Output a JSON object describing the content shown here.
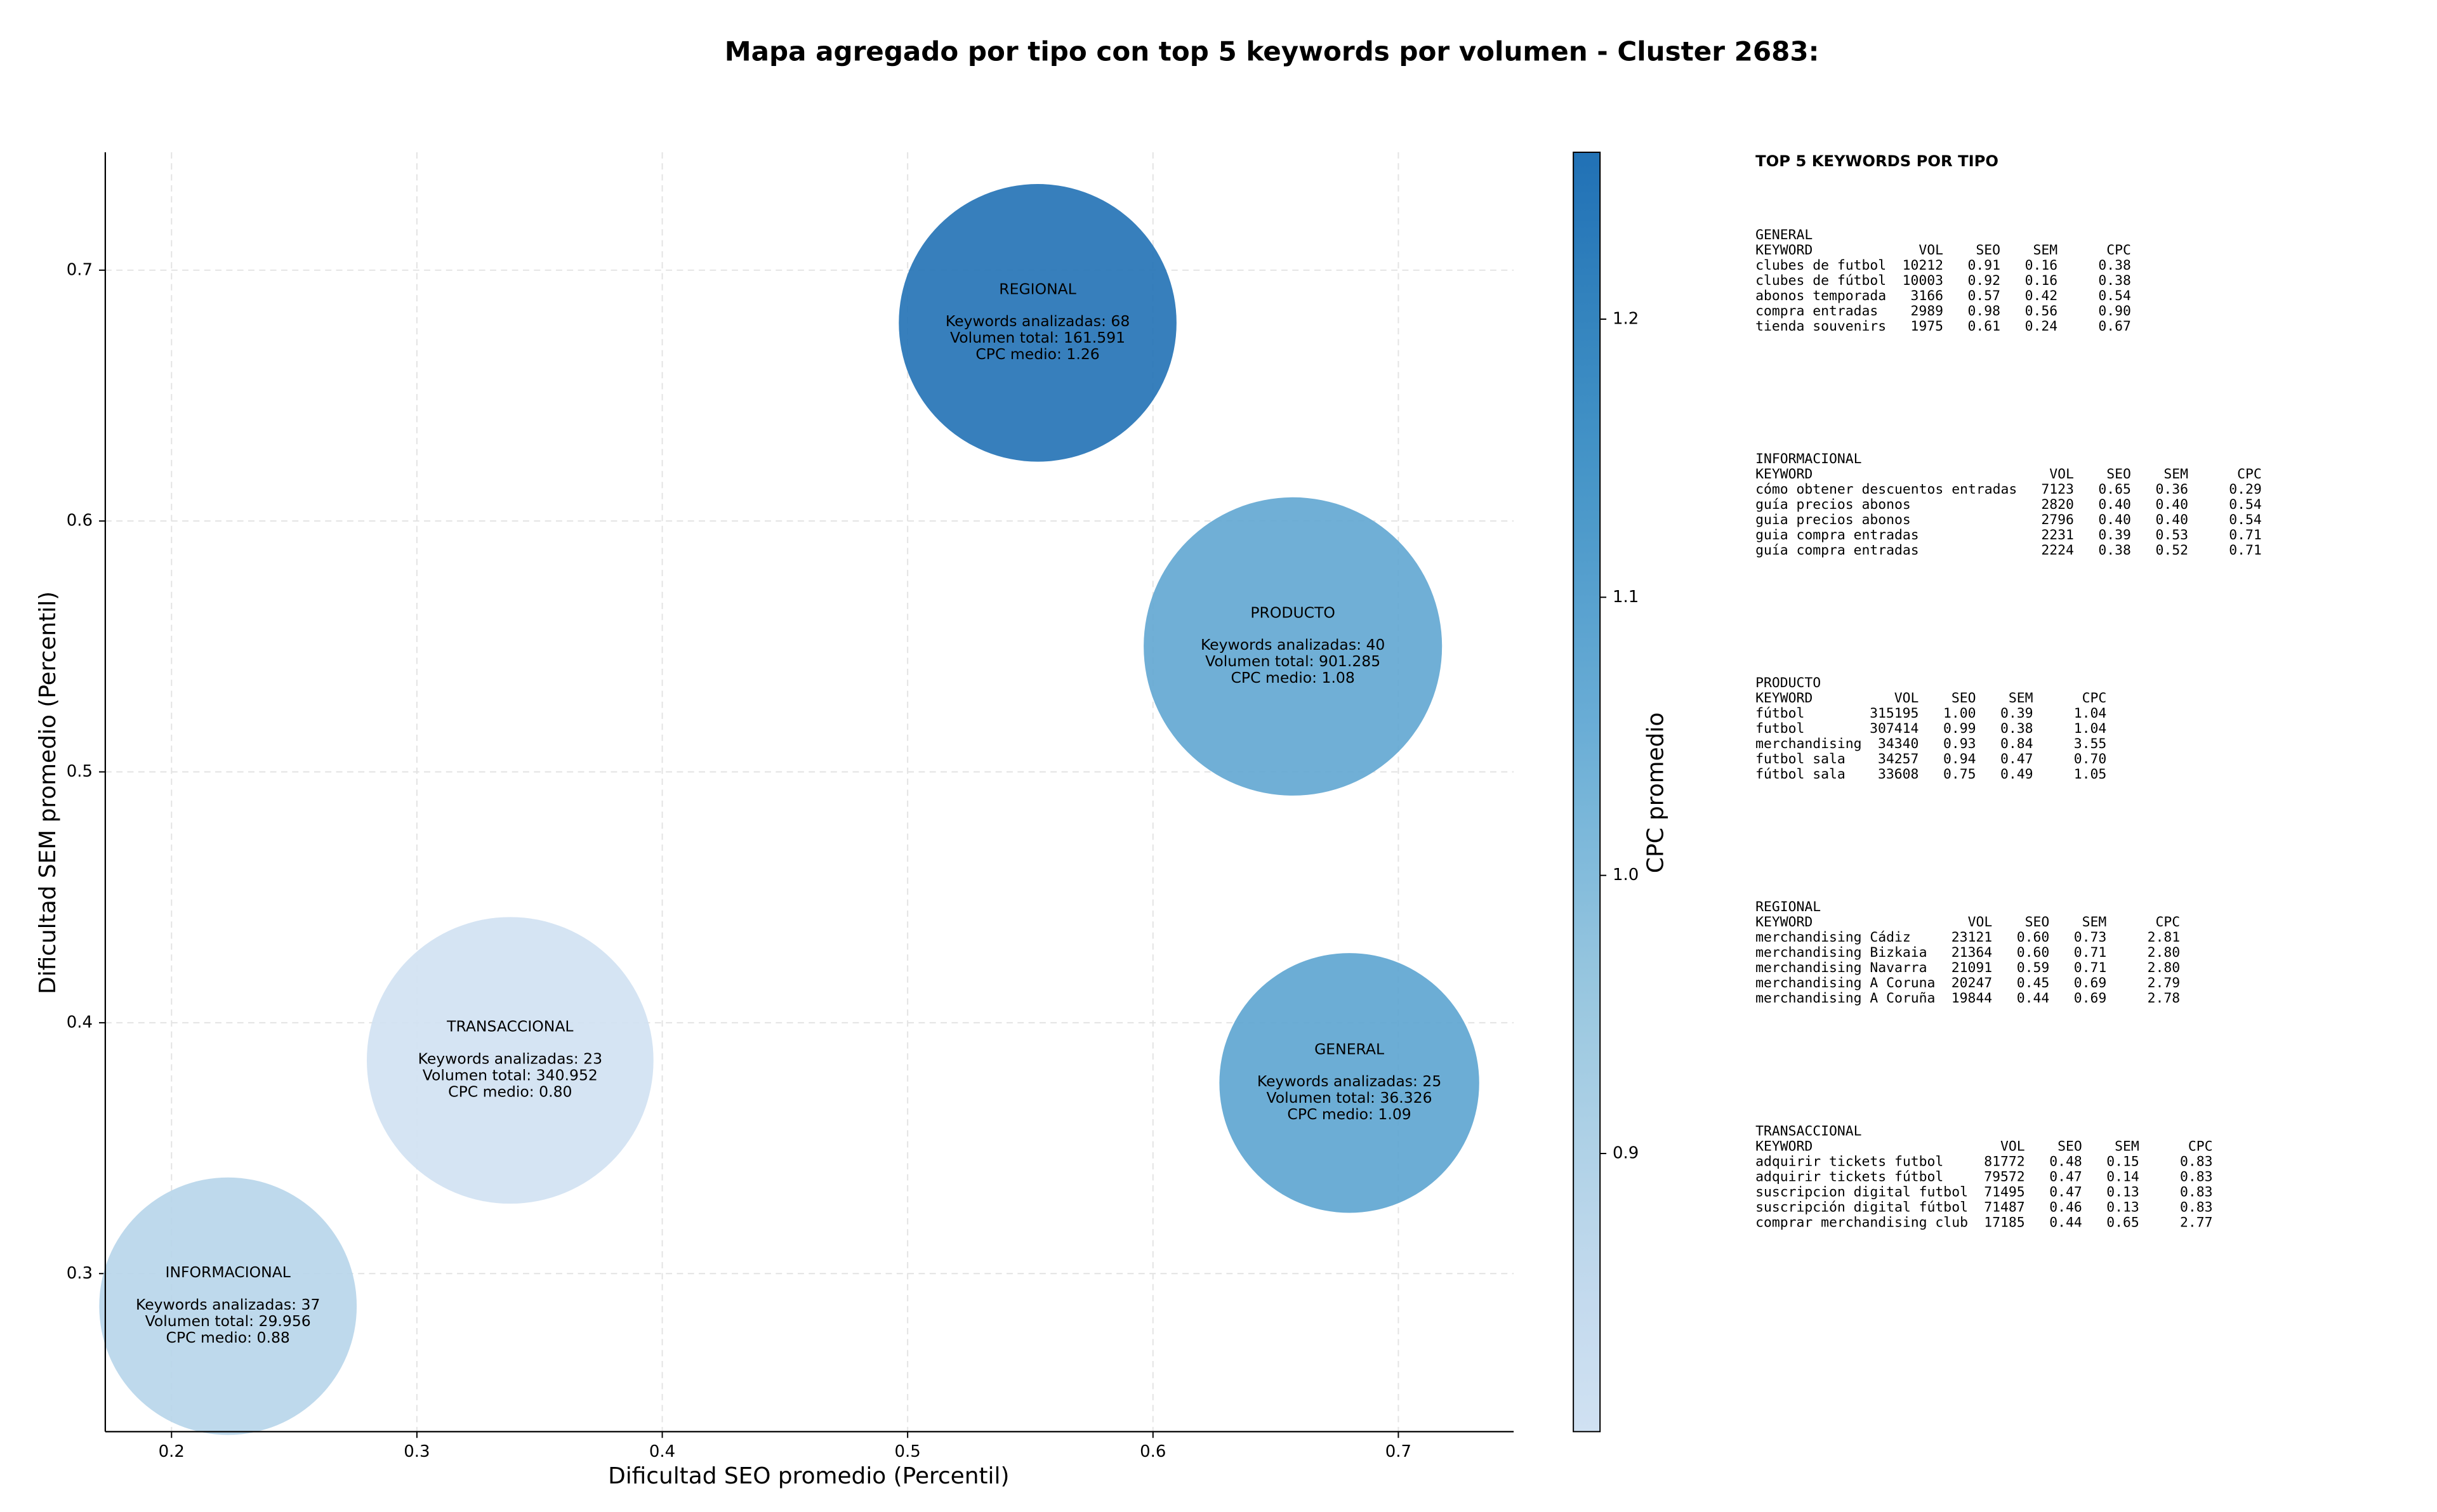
{
  "chart_data": {
    "type": "bubble",
    "title": "Mapa agregado por tipo con top 5 keywords por volumen - Cluster 2683:",
    "x_label": "Dificultad SEO promedio (Percentil)",
    "y_label": "Dificultad SEM promedio (Percentil)",
    "colorbar_label": "CPC promedio",
    "colormap": "Blues",
    "grid": true,
    "xlim": [
      0.173,
      0.747
    ],
    "ylim": [
      0.237,
      0.747
    ],
    "xticks": [
      0.2,
      0.3,
      0.4,
      0.5,
      0.6,
      0.7
    ],
    "yticks": [
      0.3,
      0.4,
      0.5,
      0.6,
      0.7
    ],
    "clim": [
      0.8,
      1.26
    ],
    "cticks": [
      0.9,
      {
        "value": 1.0,
        "label": "1.0"
      },
      1.1,
      1.2
    ],
    "points": [
      {
        "name": "REGIONAL",
        "x": 0.553,
        "y": 0.679,
        "volume": 161591,
        "cpc": 1.26,
        "labels": [
          "Keywords analizadas: 68",
          "Volumen total: 161.591",
          "CPC medio: 1.26"
        ]
      },
      {
        "name": "PRODUCTO",
        "x": 0.657,
        "y": 0.55,
        "volume": 901285,
        "cpc": 1.08,
        "labels": [
          "Keywords analizadas: 40",
          "Volumen total: 901.285",
          "CPC medio: 1.08"
        ]
      },
      {
        "name": "GENERAL",
        "x": 0.68,
        "y": 0.376,
        "volume": 36326,
        "cpc": 1.09,
        "labels": [
          "Keywords analizadas: 25",
          "Volumen total: 36.326",
          "CPC medio: 1.09"
        ]
      },
      {
        "name": "TRANSACCIONAL",
        "x": 0.338,
        "y": 0.385,
        "volume": 340952,
        "cpc": 0.8,
        "labels": [
          "Keywords analizadas: 23",
          "Volumen total: 340.952",
          "CPC medio: 0.80"
        ]
      },
      {
        "name": "INFORMACIONAL",
        "x": 0.223,
        "y": 0.287,
        "volume": 29956,
        "cpc": 0.88,
        "labels": [
          "Keywords analizadas: 37",
          "Volumen total: 29.956",
          "CPC medio: 0.88"
        ]
      }
    ]
  },
  "side_panel": {
    "title": "TOP 5 KEYWORDS POR TIPO",
    "header": [
      "KEYWORD",
      "VOL",
      "SEO",
      "SEM",
      "CPC"
    ],
    "blocks": [
      {
        "title": "GENERAL",
        "rows": [
          [
            "clubes de futbol",
            "10212",
            "0.91",
            "0.16",
            "0.38"
          ],
          [
            "clubes de fútbol",
            "10003",
            "0.92",
            "0.16",
            "0.38"
          ],
          [
            "abonos temporada",
            "3166",
            "0.57",
            "0.42",
            "0.54"
          ],
          [
            "compra entradas",
            "2989",
            "0.98",
            "0.56",
            "0.90"
          ],
          [
            "tienda souvenirs",
            "1975",
            "0.61",
            "0.24",
            "0.67"
          ]
        ]
      },
      {
        "title": "INFORMACIONAL",
        "rows": [
          [
            "cómo obtener descuentos entradas",
            "7123",
            "0.65",
            "0.36",
            "0.29"
          ],
          [
            "guía precios abonos",
            "2820",
            "0.40",
            "0.40",
            "0.54"
          ],
          [
            "guia precios abonos",
            "2796",
            "0.40",
            "0.40",
            "0.54"
          ],
          [
            "guia compra entradas",
            "2231",
            "0.39",
            "0.53",
            "0.71"
          ],
          [
            "guía compra entradas",
            "2224",
            "0.38",
            "0.52",
            "0.71"
          ]
        ]
      },
      {
        "title": "PRODUCTO",
        "rows": [
          [
            "fútbol",
            "315195",
            "1.00",
            "0.39",
            "1.04"
          ],
          [
            "futbol",
            "307414",
            "0.99",
            "0.38",
            "1.04"
          ],
          [
            "merchandising",
            "34340",
            "0.93",
            "0.84",
            "3.55"
          ],
          [
            "futbol sala",
            "34257",
            "0.94",
            "0.47",
            "0.70"
          ],
          [
            "fútbol sala",
            "33608",
            "0.75",
            "0.49",
            "1.05"
          ]
        ]
      },
      {
        "title": "REGIONAL",
        "rows": [
          [
            "merchandising Cádiz",
            "23121",
            "0.60",
            "0.73",
            "2.81"
          ],
          [
            "merchandising Bizkaia",
            "21364",
            "0.60",
            "0.71",
            "2.80"
          ],
          [
            "merchandising Navarra",
            "21091",
            "0.59",
            "0.71",
            "2.80"
          ],
          [
            "merchandising A Coruna",
            "20247",
            "0.45",
            "0.69",
            "2.79"
          ],
          [
            "merchandising A Coruña",
            "19844",
            "0.44",
            "0.69",
            "2.78"
          ]
        ]
      },
      {
        "title": "TRANSACCIONAL",
        "rows": [
          [
            "adquirir tickets futbol",
            "81772",
            "0.48",
            "0.15",
            "0.83"
          ],
          [
            "adquirir tickets fútbol",
            "79572",
            "0.47",
            "0.14",
            "0.83"
          ],
          [
            "suscripcion digital futbol",
            "71495",
            "0.47",
            "0.13",
            "0.83"
          ],
          [
            "suscripción digital fútbol",
            "71487",
            "0.46",
            "0.13",
            "0.83"
          ],
          [
            "comprar merchandising club",
            "17185",
            "0.44",
            "0.65",
            "2.77"
          ]
        ]
      }
    ]
  }
}
